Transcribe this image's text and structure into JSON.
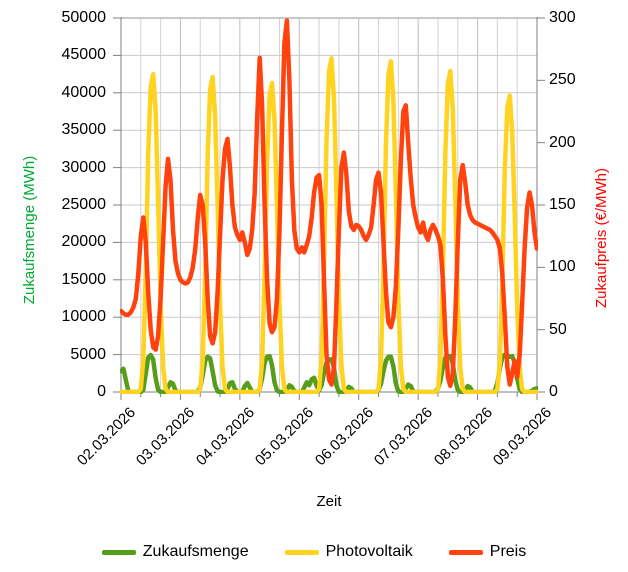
{
  "figure": {
    "x_title": "Zeit",
    "y_left_title": "Zukaufsmenge (MWh)",
    "y_left_title_color": "#00A933",
    "y_right_title": "Zukaufpreis (€/MWh)",
    "y_right_title_color": "#FF0000"
  },
  "legend": {
    "items": [
      {
        "label": "Zukaufsmenge",
        "color": "#579D1C"
      },
      {
        "label": "Photovoltaik",
        "color": "#FFD320"
      },
      {
        "label": "Preis",
        "color": "#FF420E"
      }
    ]
  },
  "chart_data": {
    "type": "line",
    "title": "",
    "xlabel": "Zeit",
    "x_unit": "hours from 02.03.2026 00:00, hourly points",
    "x_range": [
      0,
      168
    ],
    "x_tick_step_hours": 24,
    "x_tick_labels": [
      "02.03.2026",
      "03.03.2026",
      "04.03.2026",
      "05.03.2026",
      "06.03.2026",
      "07.03.2026",
      "08.03.2026",
      "09.03.2026"
    ],
    "grid": {
      "horizontal_step": 5000,
      "vertical_step_hours": 8,
      "color": "#c9c9c9"
    },
    "y_left": {
      "label": "Zukaufsmenge (MWh)",
      "range": [
        0,
        50000
      ],
      "ticks": [
        0,
        5000,
        10000,
        15000,
        20000,
        25000,
        30000,
        35000,
        40000,
        45000,
        50000
      ]
    },
    "y_right": {
      "label": "Zukaufpreis (€/MWh)",
      "range": [
        0,
        300
      ],
      "ticks": [
        0,
        50,
        100,
        150,
        200,
        250,
        300
      ]
    },
    "series": [
      {
        "name": "Zukaufsmenge",
        "axis": "left",
        "color": "#579D1C",
        "values": [
          2800,
          3100,
          1500,
          100,
          0,
          0,
          0,
          0,
          0,
          300,
          2500,
          4600,
          4950,
          4300,
          1800,
          300,
          0,
          0,
          0,
          600,
          1300,
          1100,
          200,
          0,
          0,
          0,
          0,
          0,
          0,
          0,
          0,
          100,
          600,
          2200,
          4200,
          4700,
          4500,
          2800,
          900,
          100,
          0,
          0,
          0,
          400,
          1200,
          1300,
          400,
          0,
          0,
          0,
          800,
          1200,
          600,
          0,
          0,
          0,
          400,
          1800,
          3900,
          4700,
          4800,
          3600,
          1300,
          200,
          0,
          0,
          0,
          300,
          900,
          700,
          100,
          0,
          0,
          0,
          600,
          1300,
          900,
          1700,
          1900,
          800,
          200,
          900,
          2600,
          3900,
          4300,
          4400,
          3200,
          900,
          0,
          0,
          0,
          200,
          700,
          500,
          0,
          0,
          0,
          0,
          0,
          0,
          0,
          0,
          0,
          0,
          300,
          1100,
          2800,
          4200,
          4700,
          4700,
          3400,
          1100,
          100,
          0,
          0,
          400,
          1000,
          800,
          100,
          0,
          0,
          0,
          0,
          0,
          0,
          0,
          0,
          100,
          500,
          1500,
          3300,
          4600,
          4800,
          4800,
          3800,
          1500,
          300,
          0,
          0,
          200,
          800,
          600,
          0,
          0,
          0,
          0,
          0,
          0,
          0,
          0,
          0,
          200,
          1200,
          3200,
          4600,
          5000,
          4900,
          4700,
          4800,
          3900,
          1800,
          400,
          0,
          0,
          0,
          0,
          200,
          400,
          500
        ]
      },
      {
        "name": "Photovoltaik",
        "axis": "left",
        "color": "#FFD320",
        "values": [
          0,
          0,
          0,
          0,
          0,
          0,
          0,
          0,
          400,
          4300,
          16200,
          31900,
          40800,
          42500,
          37400,
          25500,
          11900,
          3400,
          400,
          0,
          0,
          0,
          0,
          0,
          0,
          0,
          0,
          0,
          0,
          0,
          0,
          0,
          400,
          4200,
          16000,
          31600,
          40400,
          42100,
          37000,
          25300,
          11800,
          3400,
          400,
          0,
          0,
          0,
          0,
          0,
          0,
          0,
          0,
          0,
          0,
          0,
          0,
          0,
          400,
          4100,
          15700,
          31000,
          39600,
          41300,
          36300,
          24800,
          11600,
          3300,
          400,
          0,
          0,
          0,
          0,
          0,
          0,
          0,
          0,
          0,
          0,
          0,
          0,
          0,
          400,
          4500,
          16900,
          33500,
          42800,
          44600,
          39200,
          26800,
          12500,
          3600,
          400,
          0,
          0,
          0,
          0,
          0,
          0,
          0,
          0,
          0,
          0,
          0,
          0,
          0,
          400,
          4400,
          16800,
          33200,
          42400,
          44200,
          38900,
          26500,
          12400,
          3500,
          400,
          0,
          0,
          0,
          0,
          0,
          0,
          0,
          0,
          0,
          0,
          0,
          0,
          0,
          400,
          4300,
          16300,
          32200,
          41200,
          42900,
          37800,
          25700,
          12000,
          3400,
          400,
          0,
          0,
          0,
          0,
          0,
          0,
          0,
          0,
          0,
          0,
          0,
          0,
          0,
          400,
          4000,
          15000,
          29700,
          38000,
          39600,
          34800,
          23800,
          11100,
          3200,
          400,
          0,
          0,
          0,
          0,
          0,
          0
        ]
      },
      {
        "name": "Preis",
        "axis": "right",
        "color": "#FF420E",
        "values": [
          65,
          63,
          62,
          62,
          64,
          68,
          75,
          95,
          125,
          140,
          120,
          80,
          50,
          36,
          34,
          45,
          75,
          120,
          165,
          187,
          170,
          130,
          105,
          95,
          90,
          88,
          87,
          88,
          92,
          100,
          115,
          140,
          158,
          150,
          120,
          75,
          45,
          39,
          48,
          80,
          125,
          170,
          195,
          203,
          180,
          150,
          132,
          126,
          122,
          128,
          120,
          110,
          115,
          130,
          160,
          220,
          268,
          230,
          150,
          90,
          55,
          48,
          52,
          75,
          130,
          210,
          280,
          298,
          250,
          170,
          130,
          115,
          112,
          116,
          112,
          118,
          125,
          140,
          160,
          172,
          174,
          150,
          90,
          30,
          10,
          6,
          20,
          70,
          130,
          180,
          192,
          175,
          145,
          133,
          130,
          134,
          133,
          130,
          125,
          122,
          126,
          132,
          150,
          170,
          176,
          160,
          120,
          80,
          56,
          52,
          60,
          85,
          130,
          185,
          225,
          230,
          200,
          172,
          150,
          140,
          132,
          128,
          136,
          126,
          122,
          130,
          134,
          130,
          125,
          118,
          90,
          45,
          12,
          5,
          15,
          60,
          120,
          170,
          182,
          168,
          150,
          142,
          138,
          136,
          135,
          134,
          133,
          132,
          131,
          130,
          128,
          125,
          122,
          115,
          95,
          60,
          20,
          6,
          15,
          25,
          12,
          30,
          70,
          115,
          148,
          160,
          150,
          128,
          115
        ]
      }
    ]
  }
}
